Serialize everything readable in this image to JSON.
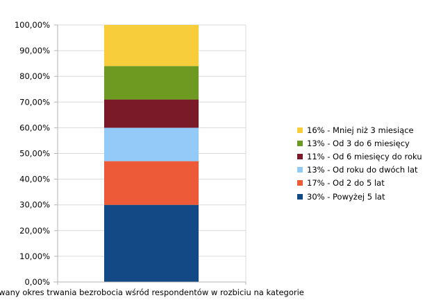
{
  "chart_data": {
    "type": "bar",
    "stacked": true,
    "category_label": "wany okres trwania bezrobocia wśród respondentów w rozbiciu na kategorie",
    "y_tick_labels": [
      "0,00%",
      "10,00%",
      "20,00%",
      "30,00%",
      "40,00%",
      "50,00%",
      "60,00%",
      "70,00%",
      "80,00%",
      "90,00%",
      "100,00%"
    ],
    "ylim": [
      0,
      100
    ],
    "grid": true,
    "legend_position": "right",
    "series": [
      {
        "name": "30% - Powyżej 5 lat",
        "value": 30,
        "color": "#134a85"
      },
      {
        "name": "17% - Od 2 do 5 lat",
        "value": 17,
        "color": "#ec5a38"
      },
      {
        "name": "13% - Od roku do dwóch lat",
        "value": 13,
        "color": "#94caf8"
      },
      {
        "name": "11% - Od 6 miesięcy do roku",
        "value": 11,
        "color": "#7a1a29"
      },
      {
        "name": "13% - Od 3 do 6 miesięcy",
        "value": 13,
        "color": "#6e9a22"
      },
      {
        "name": "16% - Mniej niż 3 miesiące",
        "value": 16,
        "color": "#f8cd3c"
      }
    ]
  }
}
